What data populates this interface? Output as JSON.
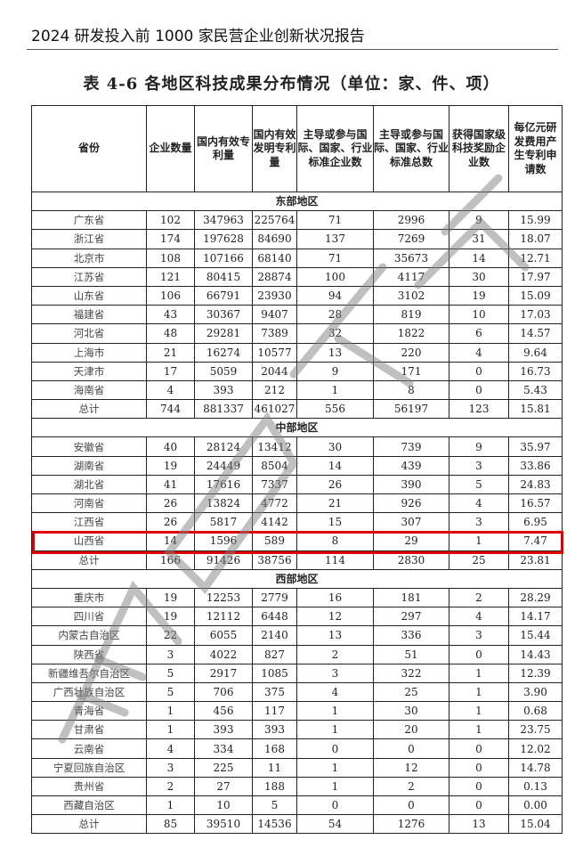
{
  "header": "2024 研发投入前 1000 家民营企业创新状况报告",
  "title": "表 4-6 各地区科技成果分布情况（单位：家、件、项）",
  "watermark": "全国工商联",
  "highlight_color": "#e00000",
  "columns": [
    "省份",
    "企业数量",
    "国内有效专利量",
    "国内有效发明专利量",
    "主导或参与国际、国家、行业标准企业数",
    "主导或参与国际、国家、行业标准总数",
    "获得国家级科技奖励企业数",
    "每亿元研发费用产生专利申请数"
  ],
  "regions": [
    {
      "name": "东部地区",
      "rows": [
        [
          "广东省",
          "102",
          "347963",
          "225764",
          "71",
          "2996",
          "9",
          "15.99"
        ],
        [
          "浙江省",
          "174",
          "197628",
          "84690",
          "137",
          "7269",
          "31",
          "18.07"
        ],
        [
          "北京市",
          "108",
          "107166",
          "68140",
          "71",
          "35673",
          "14",
          "12.71"
        ],
        [
          "江苏省",
          "121",
          "80415",
          "28874",
          "100",
          "4117",
          "30",
          "17.97"
        ],
        [
          "山东省",
          "106",
          "66791",
          "23930",
          "94",
          "3102",
          "19",
          "15.09"
        ],
        [
          "福建省",
          "43",
          "30367",
          "9407",
          "28",
          "819",
          "10",
          "17.03"
        ],
        [
          "河北省",
          "48",
          "29281",
          "7389",
          "32",
          "1822",
          "6",
          "14.57"
        ],
        [
          "上海市",
          "21",
          "16274",
          "10577",
          "13",
          "220",
          "4",
          "9.64"
        ],
        [
          "天津市",
          "17",
          "5059",
          "2044",
          "9",
          "171",
          "0",
          "16.73"
        ],
        [
          "海南省",
          "4",
          "393",
          "212",
          "1",
          "8",
          "0",
          "5.43"
        ],
        [
          "总计",
          "744",
          "881337",
          "461027",
          "556",
          "56197",
          "123",
          "15.81"
        ]
      ]
    },
    {
      "name": "中部地区",
      "rows": [
        [
          "安徽省",
          "40",
          "28124",
          "13412",
          "30",
          "739",
          "9",
          "35.97"
        ],
        [
          "湖南省",
          "19",
          "24449",
          "8504",
          "14",
          "439",
          "3",
          "33.86"
        ],
        [
          "湖北省",
          "41",
          "17616",
          "7337",
          "26",
          "390",
          "5",
          "24.83"
        ],
        [
          "河南省",
          "26",
          "13824",
          "4772",
          "21",
          "926",
          "4",
          "16.57"
        ],
        [
          "江西省",
          "26",
          "5817",
          "4142",
          "15",
          "307",
          "3",
          "6.95"
        ],
        [
          "山西省",
          "14",
          "1596",
          "589",
          "8",
          "29",
          "1",
          "7.47"
        ],
        [
          "总计",
          "166",
          "91426",
          "38756",
          "114",
          "2830",
          "25",
          "23.81"
        ]
      ]
    },
    {
      "name": "西部地区",
      "rows": [
        [
          "重庆市",
          "19",
          "12253",
          "2779",
          "16",
          "181",
          "2",
          "28.29"
        ],
        [
          "四川省",
          "19",
          "12112",
          "6448",
          "12",
          "297",
          "4",
          "14.17"
        ],
        [
          "内蒙古自治区",
          "22",
          "6055",
          "2140",
          "13",
          "336",
          "3",
          "15.44"
        ],
        [
          "陕西省",
          "3",
          "4022",
          "827",
          "2",
          "51",
          "0",
          "14.43"
        ],
        [
          "新疆维吾尔自治区",
          "5",
          "2917",
          "1085",
          "3",
          "322",
          "1",
          "12.39"
        ],
        [
          "广西壮族自治区",
          "5",
          "706",
          "375",
          "4",
          "25",
          "1",
          "3.90"
        ],
        [
          "青海省",
          "1",
          "456",
          "117",
          "1",
          "30",
          "1",
          "0.68"
        ],
        [
          "甘肃省",
          "1",
          "393",
          "393",
          "1",
          "20",
          "1",
          "23.75"
        ],
        [
          "云南省",
          "4",
          "334",
          "168",
          "0",
          "0",
          "0",
          "12.02"
        ],
        [
          "宁夏回族自治区",
          "3",
          "225",
          "11",
          "1",
          "12",
          "0",
          "14.78"
        ],
        [
          "贵州省",
          "2",
          "27",
          "188",
          "1",
          "2",
          "0",
          "0.13"
        ],
        [
          "西藏自治区",
          "1",
          "10",
          "5",
          "0",
          "0",
          "0",
          "0.00"
        ],
        [
          "总计",
          "85",
          "39510",
          "14536",
          "54",
          "1276",
          "13",
          "15.04"
        ]
      ]
    }
  ]
}
